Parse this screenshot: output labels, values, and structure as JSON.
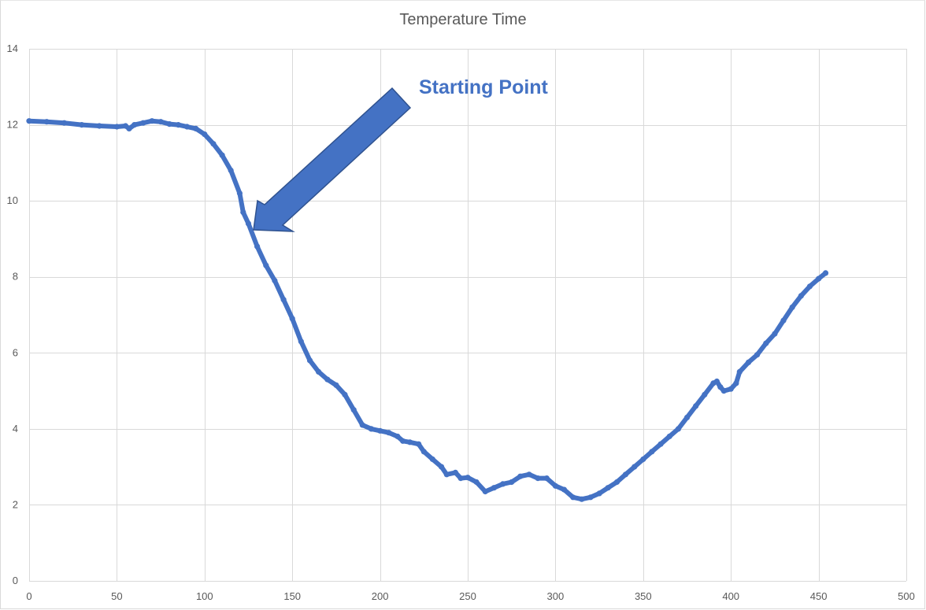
{
  "chart_data": {
    "type": "scatter",
    "title": "Temperature Time",
    "xlabel": "",
    "ylabel": "",
    "xlim": [
      0,
      500
    ],
    "ylim": [
      0,
      14
    ],
    "x_ticks": [
      0,
      50,
      100,
      150,
      200,
      250,
      300,
      350,
      400,
      450,
      500
    ],
    "y_ticks": [
      0,
      2,
      4,
      6,
      8,
      10,
      12,
      14
    ],
    "grid": true,
    "legend": "none",
    "series_color": "#4472c4",
    "series": [
      {
        "points": [
          [
            0,
            12.1
          ],
          [
            10,
            12.08
          ],
          [
            20,
            12.05
          ],
          [
            30,
            12.0
          ],
          [
            40,
            11.97
          ],
          [
            50,
            11.95
          ],
          [
            55,
            11.97
          ],
          [
            57,
            11.9
          ],
          [
            60,
            12.0
          ],
          [
            65,
            12.05
          ],
          [
            70,
            12.1
          ],
          [
            75,
            12.08
          ],
          [
            80,
            12.02
          ],
          [
            85,
            12.0
          ],
          [
            90,
            11.95
          ],
          [
            95,
            11.9
          ],
          [
            100,
            11.75
          ],
          [
            105,
            11.5
          ],
          [
            110,
            11.2
          ],
          [
            115,
            10.8
          ],
          [
            120,
            10.2
          ],
          [
            122,
            9.7
          ],
          [
            125,
            9.4
          ],
          [
            130,
            8.8
          ],
          [
            135,
            8.3
          ],
          [
            140,
            7.9
          ],
          [
            145,
            7.4
          ],
          [
            150,
            6.9
          ],
          [
            155,
            6.3
          ],
          [
            160,
            5.8
          ],
          [
            165,
            5.5
          ],
          [
            170,
            5.3
          ],
          [
            175,
            5.15
          ],
          [
            180,
            4.9
          ],
          [
            185,
            4.5
          ],
          [
            190,
            4.1
          ],
          [
            195,
            4.0
          ],
          [
            200,
            3.95
          ],
          [
            205,
            3.9
          ],
          [
            210,
            3.8
          ],
          [
            213,
            3.68
          ],
          [
            217,
            3.65
          ],
          [
            222,
            3.6
          ],
          [
            225,
            3.4
          ],
          [
            230,
            3.2
          ],
          [
            235,
            3.0
          ],
          [
            238,
            2.8
          ],
          [
            243,
            2.85
          ],
          [
            246,
            2.7
          ],
          [
            250,
            2.72
          ],
          [
            255,
            2.6
          ],
          [
            260,
            2.35
          ],
          [
            265,
            2.45
          ],
          [
            270,
            2.55
          ],
          [
            275,
            2.6
          ],
          [
            280,
            2.75
          ],
          [
            285,
            2.8
          ],
          [
            290,
            2.7
          ],
          [
            295,
            2.7
          ],
          [
            300,
            2.5
          ],
          [
            305,
            2.4
          ],
          [
            310,
            2.2
          ],
          [
            315,
            2.15
          ],
          [
            320,
            2.2
          ],
          [
            325,
            2.3
          ],
          [
            330,
            2.45
          ],
          [
            335,
            2.6
          ],
          [
            340,
            2.8
          ],
          [
            345,
            3.0
          ],
          [
            350,
            3.2
          ],
          [
            355,
            3.4
          ],
          [
            360,
            3.6
          ],
          [
            365,
            3.8
          ],
          [
            370,
            4.0
          ],
          [
            375,
            4.3
          ],
          [
            380,
            4.6
          ],
          [
            385,
            4.9
          ],
          [
            390,
            5.2
          ],
          [
            392,
            5.25
          ],
          [
            394,
            5.1
          ],
          [
            396,
            5.0
          ],
          [
            400,
            5.05
          ],
          [
            403,
            5.2
          ],
          [
            405,
            5.5
          ],
          [
            410,
            5.75
          ],
          [
            415,
            5.95
          ],
          [
            420,
            6.25
          ],
          [
            425,
            6.5
          ],
          [
            430,
            6.85
          ],
          [
            435,
            7.2
          ],
          [
            440,
            7.5
          ],
          [
            445,
            7.75
          ],
          [
            450,
            7.95
          ],
          [
            454,
            8.1
          ]
        ]
      }
    ],
    "annotations": [
      {
        "text": "Starting Point",
        "arrow_target": [
          127,
          9.3
        ]
      }
    ]
  }
}
